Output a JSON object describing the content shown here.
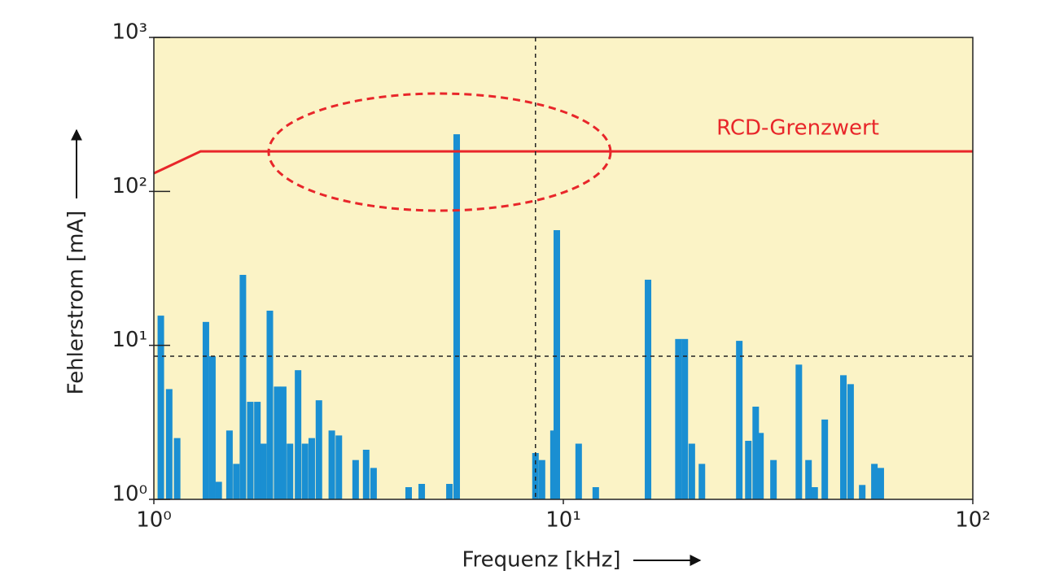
{
  "chart_data": {
    "type": "bar",
    "x_label": "Frequenz [kHz]",
    "y_label": "Fehlerstrom [mA]",
    "xscale": "log",
    "yscale": "log",
    "xlim": [
      1,
      100
    ],
    "ylim": [
      1,
      1000
    ],
    "xticks": [
      {
        "value": 1,
        "label": "10⁰"
      },
      {
        "value": 10,
        "label": "10¹"
      },
      {
        "value": 100,
        "label": "10²"
      }
    ],
    "yticks": [
      {
        "value": 1,
        "label": "10⁰"
      },
      {
        "value": 10,
        "label": "10¹"
      },
      {
        "value": 100,
        "label": "10²"
      },
      {
        "value": 1000,
        "label": "10³"
      }
    ],
    "background": "#fbf3c6",
    "reference_lines": {
      "x": 8.55,
      "y": 8.5,
      "color": "#222222"
    },
    "series": [
      {
        "type": "bar",
        "color": "#1a8fd2",
        "x": [
          1.04,
          1.09,
          1.14,
          1.34,
          1.39,
          1.44,
          1.53,
          1.59,
          1.65,
          1.72,
          1.79,
          1.85,
          1.92,
          2.0,
          2.07,
          2.15,
          2.25,
          2.34,
          2.43,
          2.53,
          2.72,
          2.83,
          3.11,
          3.3,
          3.44,
          4.19,
          4.51,
          5.27,
          5.49,
          8.55,
          8.87,
          9.46,
          9.64,
          10.9,
          12.0,
          16.1,
          19.1,
          19.8,
          20.6,
          21.8,
          26.9,
          28.3,
          29.5,
          30.3,
          32.6,
          37.6,
          39.7,
          41.1,
          43.5,
          48.3,
          50.3,
          53.7,
          57.5,
          59.6
        ],
        "values": [
          15.6,
          5.2,
          2.5,
          14.2,
          8.5,
          1.3,
          2.8,
          1.7,
          28.7,
          4.3,
          4.3,
          2.3,
          16.8,
          5.4,
          5.4,
          2.3,
          6.9,
          2.3,
          2.5,
          4.4,
          2.8,
          2.6,
          1.8,
          2.1,
          1.6,
          1.2,
          1.26,
          1.26,
          235,
          2.0,
          1.8,
          2.8,
          56,
          2.3,
          1.2,
          26.7,
          11.0,
          11.0,
          2.3,
          1.7,
          10.7,
          2.4,
          4.0,
          2.7,
          1.8,
          7.5,
          1.8,
          1.2,
          3.3,
          6.4,
          5.6,
          1.24,
          1.7,
          1.6
        ]
      },
      {
        "type": "line",
        "name": "RCD-Grenzwert",
        "color": "#e8262a",
        "x": [
          1,
          1.3,
          100
        ],
        "values": [
          131,
          182,
          182
        ]
      }
    ]
  }
}
